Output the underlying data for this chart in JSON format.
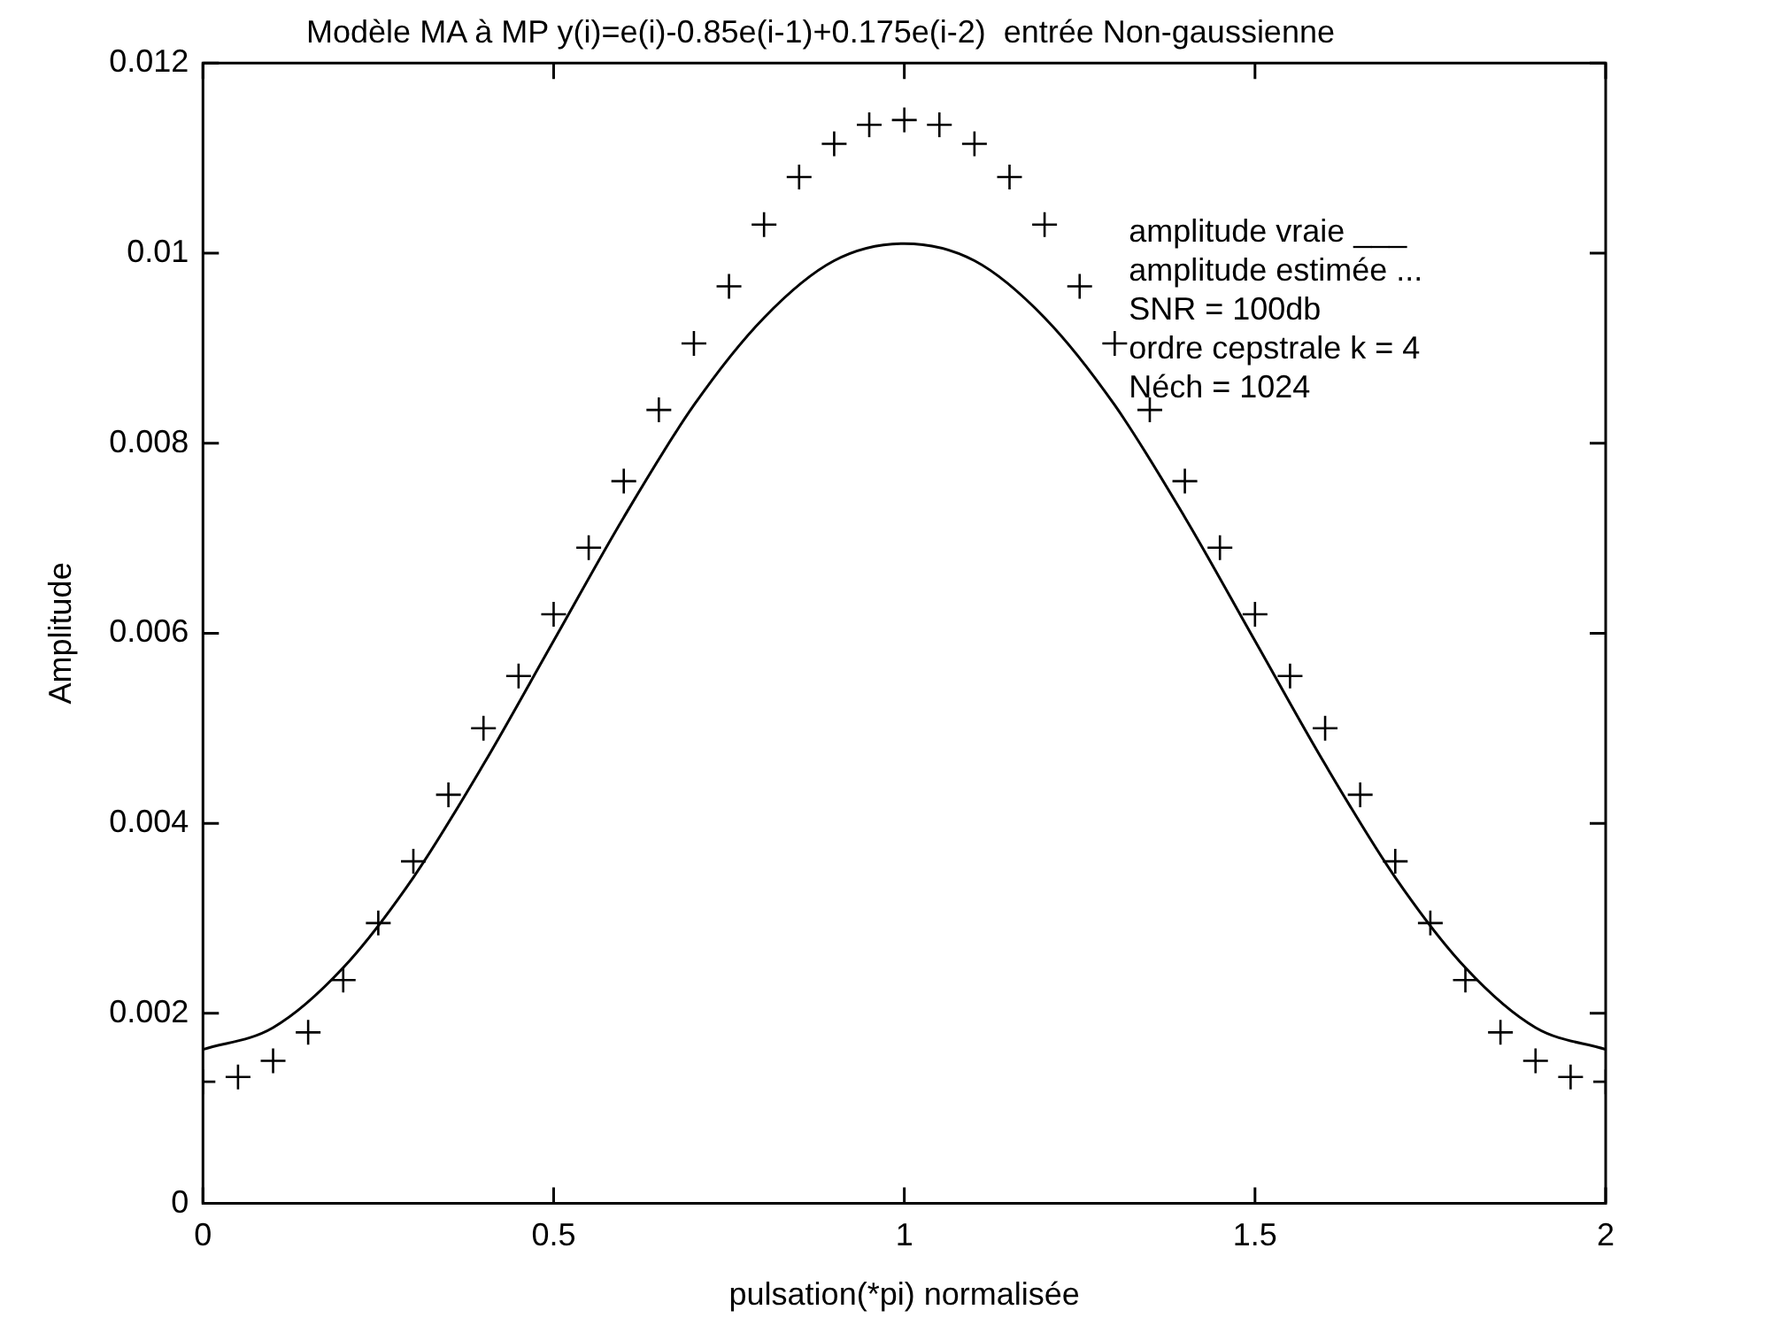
{
  "chart_data": {
    "type": "line",
    "title": "Modèle MA à MP y(i)=e(i)-0.85e(i-1)+0.175e(i-2)  entrée Non-gaussienne",
    "xlabel": "pulsation(*pi) normalisée",
    "ylabel": "Amplitude",
    "xlim": [
      0,
      2
    ],
    "xticks": [
      0,
      0.5,
      1,
      1.5,
      2
    ],
    "ylim": [
      0,
      0.012
    ],
    "yticks": [
      0,
      0.002,
      0.004,
      0.006,
      0.008,
      0.01,
      0.012
    ],
    "grid": false,
    "legend": false,
    "annotations": [
      "amplitude vraie ___",
      "amplitude estimée ...",
      "SNR = 100db",
      "ordre cepstrale k = 4",
      "Néch = 1024"
    ],
    "series": [
      {
        "color": "#000000",
        "marker": "none",
        "x": [
          0,
          0.1,
          0.2,
          0.3,
          0.4,
          0.5,
          0.6,
          0.7,
          0.8,
          0.9,
          1,
          1.1,
          1.2,
          1.3,
          1.4,
          1.5,
          1.6,
          1.7,
          1.8,
          1.9,
          2
        ],
        "values": [
          0.00162,
          0.00185,
          0.00248,
          0.00343,
          0.00462,
          0.00592,
          0.00722,
          0.0084,
          0.00932,
          0.00992,
          0.0101,
          0.00992,
          0.00932,
          0.0084,
          0.00722,
          0.00592,
          0.00462,
          0.00343,
          0.00248,
          0.00185,
          0.00162
        ]
      },
      {
        "type": "scatter",
        "color": "#000000",
        "marker": "cross",
        "x": [
          0,
          0.05,
          0.1,
          0.15,
          0.2,
          0.25,
          0.3,
          0.35,
          0.4,
          0.45,
          0.5,
          0.55,
          0.6,
          0.65,
          0.7,
          0.75,
          0.8,
          0.85,
          0.9,
          0.95,
          1,
          1.05,
          1.1,
          1.15,
          1.2,
          1.25,
          1.3,
          1.35,
          1.4,
          1.45,
          1.5,
          1.55,
          1.6,
          1.65,
          1.7,
          1.75,
          1.8,
          1.85,
          1.9,
          1.95,
          2
        ],
        "values": [
          0.00128,
          0.00133,
          0.0015,
          0.0018,
          0.00235,
          0.00295,
          0.0036,
          0.0043,
          0.005,
          0.00555,
          0.0062,
          0.0069,
          0.0076,
          0.00835,
          0.00905,
          0.00965,
          0.0103,
          0.0108,
          0.01115,
          0.01135,
          0.0114,
          0.01135,
          0.01115,
          0.0108,
          0.0103,
          0.00965,
          0.00905,
          0.00835,
          0.0076,
          0.0069,
          0.0062,
          0.00555,
          0.005,
          0.0043,
          0.0036,
          0.00295,
          0.00235,
          0.0018,
          0.0015,
          0.00133,
          0.00128
        ]
      }
    ]
  }
}
